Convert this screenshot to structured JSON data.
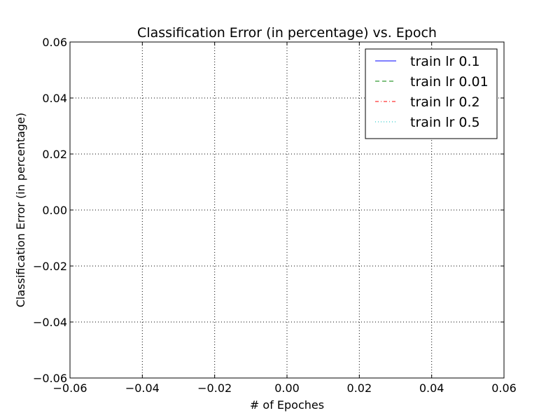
{
  "chart_data": {
    "type": "line",
    "title": "Classification Error (in percentage) vs. Epoch",
    "xlabel": "# of Epoches",
    "ylabel": "Classification Error (in percentage)",
    "xlim": [
      -0.06,
      0.06
    ],
    "ylim": [
      -0.06,
      0.06
    ],
    "x_ticks": [
      -0.06,
      -0.04,
      -0.02,
      0.0,
      0.02,
      0.04,
      0.06
    ],
    "y_ticks": [
      -0.06,
      -0.04,
      -0.02,
      0.0,
      0.02,
      0.04,
      0.06
    ],
    "x_tick_labels": [
      "−0.06",
      "−0.04",
      "−0.02",
      "0.00",
      "0.02",
      "0.04",
      "0.06"
    ],
    "y_tick_labels": [
      "−0.06",
      "−0.04",
      "−0.02",
      "0.00",
      "0.02",
      "0.04",
      "0.06"
    ],
    "grid": true,
    "legend_position": "upper right",
    "series": [
      {
        "name": "train lr 0.1",
        "color": "#0000ff",
        "linestyle": "solid",
        "x": [],
        "y": []
      },
      {
        "name": "train lr 0.01",
        "color": "#008000",
        "linestyle": "dashed",
        "x": [],
        "y": []
      },
      {
        "name": "train lr 0.2",
        "color": "#ff0000",
        "linestyle": "dashdot",
        "x": [],
        "y": []
      },
      {
        "name": "train lr 0.5",
        "color": "#00bfbf",
        "linestyle": "dotted",
        "x": [],
        "y": []
      }
    ]
  }
}
